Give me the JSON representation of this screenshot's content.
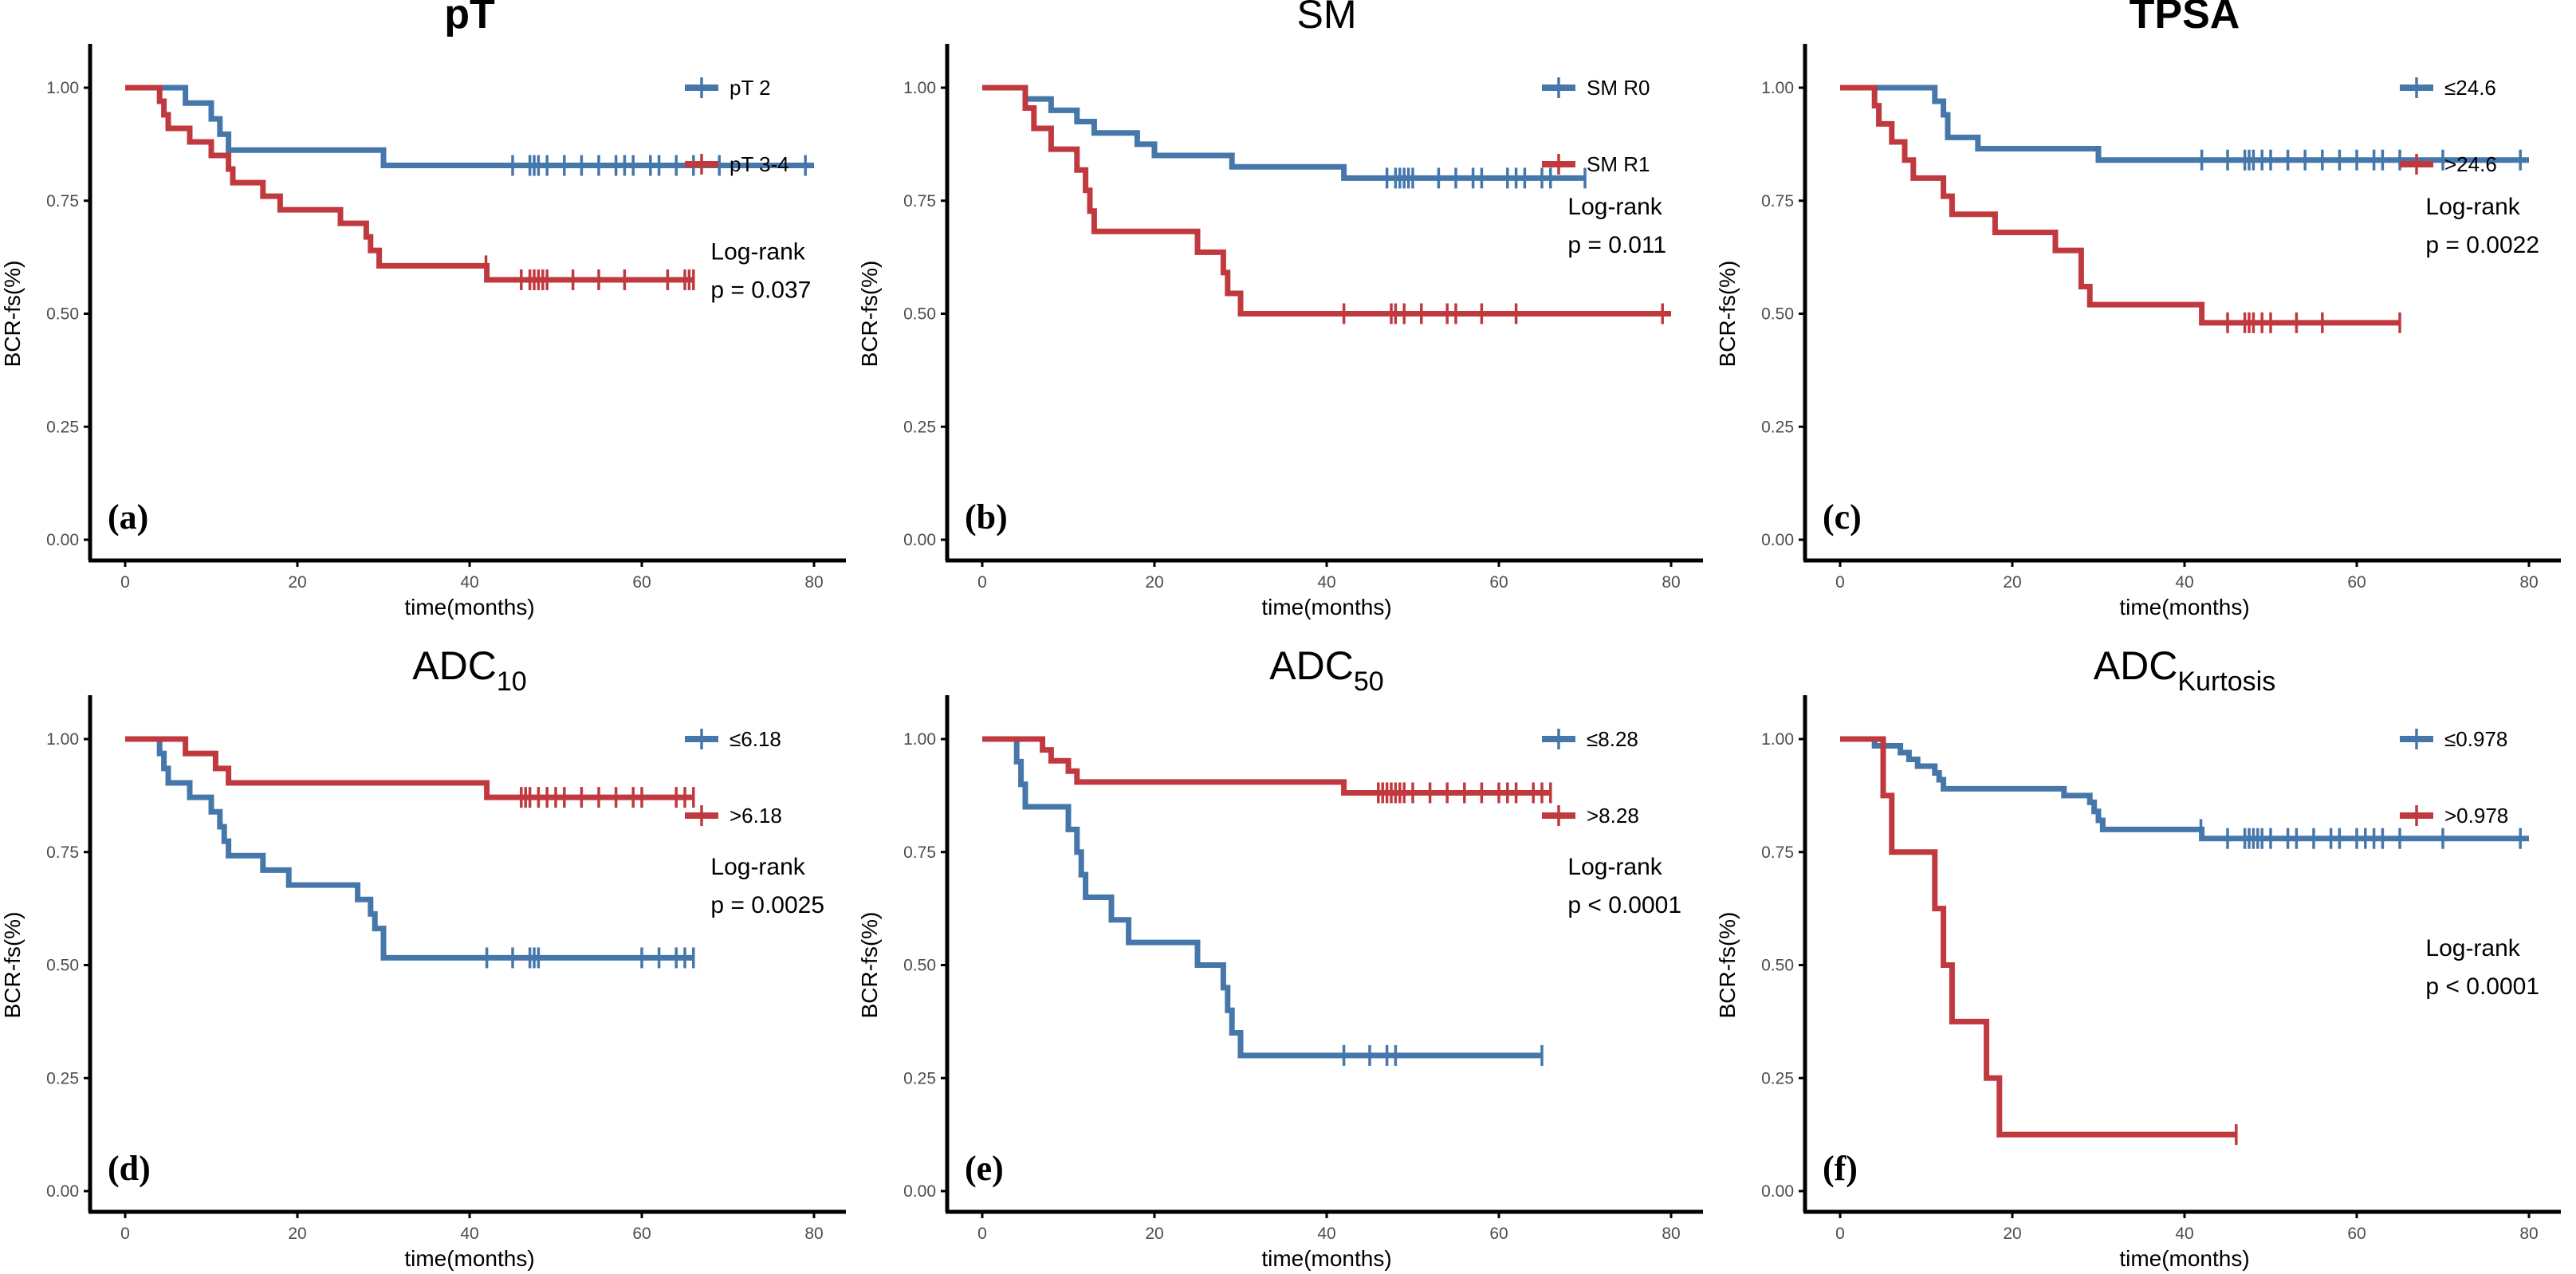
{
  "figure": {
    "colors": {
      "group1": "#4577AB",
      "group2": "#C0393F",
      "axis": "#000000",
      "tick_text": "#4d4d4d"
    }
  },
  "chart_data": [
    {
      "type": "line",
      "subtype": "kaplan-meier",
      "panel_tag": "(a)",
      "title": "pT",
      "title_sub": "",
      "title_bold": true,
      "xlabel": "time(months)",
      "ylabel": "BCR-fs(%)",
      "xlim": [
        0,
        80
      ],
      "ylim": [
        0,
        1
      ],
      "xticks": [
        "0",
        "20",
        "40",
        "60",
        "80"
      ],
      "yticks": [
        "0.00",
        "0.25",
        "0.50",
        "0.75",
        "1.00"
      ],
      "legend_position": "top-right",
      "annotation": [
        "Log-rank",
        "p = 0.037"
      ],
      "annotation_y": 0.62,
      "series": [
        {
          "name": "pT 2",
          "color": "#4577AB",
          "end": 80,
          "steps": [
            [
              0,
              1.0
            ],
            [
              7,
              0.966
            ],
            [
              10,
              0.931
            ],
            [
              11,
              0.897
            ],
            [
              12,
              0.862
            ],
            [
              30,
              0.828
            ]
          ],
          "censors": [
            45,
            47,
            47.5,
            48,
            49,
            51,
            53,
            55,
            57,
            58,
            59,
            61,
            62,
            64,
            66,
            69,
            79
          ]
        },
        {
          "name": "pT 3-4",
          "color": "#C0393F",
          "end": 66,
          "steps": [
            [
              0,
              1.0
            ],
            [
              4,
              0.97
            ],
            [
              4.5,
              0.94
            ],
            [
              5,
              0.91
            ],
            [
              7.5,
              0.88
            ],
            [
              10,
              0.85
            ],
            [
              12,
              0.82
            ],
            [
              12.5,
              0.79
            ],
            [
              16,
              0.76
            ],
            [
              18,
              0.73
            ],
            [
              25,
              0.7
            ],
            [
              28,
              0.67
            ],
            [
              28.5,
              0.64
            ],
            [
              29.5,
              0.606
            ],
            [
              42,
              0.575
            ]
          ],
          "censors": [
            41.9,
            46,
            47,
            47.5,
            48,
            48.5,
            49,
            52,
            55,
            58,
            63,
            65,
            65.5,
            66
          ]
        }
      ]
    },
    {
      "type": "line",
      "subtype": "kaplan-meier",
      "panel_tag": "(b)",
      "title": "SM",
      "title_sub": "",
      "title_bold": false,
      "xlabel": "time(months)",
      "ylabel": "BCR-fs(%)",
      "xlim": [
        0,
        80
      ],
      "ylim": [
        0,
        1
      ],
      "xticks": [
        "0",
        "20",
        "40",
        "60",
        "80"
      ],
      "yticks": [
        "0.00",
        "0.25",
        "0.50",
        "0.75",
        "1.00"
      ],
      "legend_position": "top-right",
      "annotation": [
        "Log-rank",
        "p = 0.011"
      ],
      "annotation_y": 0.72,
      "series": [
        {
          "name": "SM R0",
          "color": "#4577AB",
          "end": 70,
          "steps": [
            [
              0,
              1.0
            ],
            [
              5,
              0.975
            ],
            [
              8,
              0.95
            ],
            [
              11,
              0.925
            ],
            [
              13,
              0.9
            ],
            [
              18,
              0.875
            ],
            [
              20,
              0.85
            ],
            [
              29,
              0.825
            ],
            [
              42,
              0.8
            ]
          ],
          "censors": [
            47,
            48,
            48.5,
            49,
            49.5,
            50,
            53,
            55,
            57,
            58,
            61,
            62,
            63,
            65,
            66,
            70
          ]
        },
        {
          "name": "SM R1",
          "color": "#C0393F",
          "end": 80,
          "steps": [
            [
              0,
              1.0
            ],
            [
              5,
              0.955
            ],
            [
              6,
              0.91
            ],
            [
              8,
              0.864
            ],
            [
              11,
              0.818
            ],
            [
              12,
              0.773
            ],
            [
              12.5,
              0.727
            ],
            [
              13,
              0.682
            ],
            [
              25,
              0.636
            ],
            [
              28,
              0.591
            ],
            [
              28.5,
              0.545
            ],
            [
              30,
              0.5
            ]
          ],
          "censors": [
            42,
            47.5,
            48,
            49,
            51,
            54,
            55,
            58,
            62,
            79
          ]
        }
      ]
    },
    {
      "type": "line",
      "subtype": "kaplan-meier",
      "panel_tag": "(c)",
      "title": "TPSA",
      "title_sub": "",
      "title_bold": true,
      "xlabel": "time(months)",
      "ylabel": "BCR-fs(%)",
      "xlim": [
        0,
        80
      ],
      "ylim": [
        0,
        1
      ],
      "xticks": [
        "0",
        "20",
        "40",
        "60",
        "80"
      ],
      "yticks": [
        "0.00",
        "0.25",
        "0.50",
        "0.75",
        "1.00"
      ],
      "legend_position": "top-right",
      "annotation": [
        "Log-rank",
        "p = 0.0022"
      ],
      "annotation_y": 0.72,
      "series": [
        {
          "name": "≤24.6",
          "color": "#4577AB",
          "end": 80,
          "steps": [
            [
              0,
              1.0
            ],
            [
              11,
              0.97
            ],
            [
              12,
              0.94
            ],
            [
              12.5,
              0.89
            ],
            [
              16,
              0.865
            ],
            [
              30,
              0.84
            ]
          ],
          "censors": [
            42,
            45,
            47,
            47.5,
            48,
            49,
            50,
            52,
            54,
            56,
            58,
            60,
            62,
            63,
            65,
            70,
            79
          ]
        },
        {
          "name": ">24.6",
          "color": "#C0393F",
          "end": 65,
          "steps": [
            [
              0,
              1.0
            ],
            [
              4,
              0.96
            ],
            [
              4.5,
              0.92
            ],
            [
              6,
              0.88
            ],
            [
              7.5,
              0.84
            ],
            [
              8.5,
              0.8
            ],
            [
              12,
              0.76
            ],
            [
              13,
              0.72
            ],
            [
              18,
              0.68
            ],
            [
              25,
              0.64
            ],
            [
              28,
              0.56
            ],
            [
              29,
              0.52
            ],
            [
              42,
              0.48
            ]
          ],
          "censors": [
            45,
            47,
            47.5,
            48,
            49,
            50,
            53,
            56,
            65
          ]
        }
      ]
    },
    {
      "type": "line",
      "subtype": "kaplan-meier",
      "panel_tag": "(d)",
      "title": "ADC",
      "title_sub": "10",
      "title_bold": false,
      "xlabel": "time(months)",
      "ylabel": "BCR-fs(%)",
      "xlim": [
        0,
        80
      ],
      "ylim": [
        0,
        1
      ],
      "xticks": [
        "0",
        "20",
        "40",
        "60",
        "80"
      ],
      "yticks": [
        "0.00",
        "0.25",
        "0.50",
        "0.75",
        "1.00"
      ],
      "legend_position": "top-right",
      "annotation": [
        "Log-rank",
        "p = 0.0025"
      ],
      "annotation_y": 0.7,
      "series": [
        {
          "name": "≤6.18",
          "color": "#4577AB",
          "end": 66,
          "steps": [
            [
              0,
              1.0
            ],
            [
              4,
              0.968
            ],
            [
              4.5,
              0.935
            ],
            [
              5,
              0.903
            ],
            [
              7.5,
              0.871
            ],
            [
              10,
              0.839
            ],
            [
              11,
              0.806
            ],
            [
              11.5,
              0.774
            ],
            [
              12,
              0.742
            ],
            [
              16,
              0.71
            ],
            [
              19,
              0.677
            ],
            [
              27,
              0.645
            ],
            [
              28.5,
              0.613
            ],
            [
              29,
              0.581
            ],
            [
              30,
              0.516
            ]
          ],
          "censors": [
            42,
            45,
            47,
            47.5,
            48,
            60,
            62,
            64,
            65,
            66
          ]
        },
        {
          "name": ">6.18",
          "color": "#C0393F",
          "end": 66,
          "steps": [
            [
              0,
              1.0
            ],
            [
              7,
              0.968
            ],
            [
              10.5,
              0.935
            ],
            [
              12,
              0.903
            ],
            [
              42,
              0.871
            ]
          ],
          "censors": [
            46,
            46.5,
            47,
            48,
            49,
            50,
            51,
            53,
            55,
            57,
            59,
            60,
            64,
            65,
            66
          ]
        }
      ]
    },
    {
      "type": "line",
      "subtype": "kaplan-meier",
      "panel_tag": "(e)",
      "title": "ADC",
      "title_sub": "50",
      "title_bold": false,
      "xlabel": "time(months)",
      "ylabel": "BCR-fs(%)",
      "xlim": [
        0,
        80
      ],
      "ylim": [
        0,
        1
      ],
      "xticks": [
        "0",
        "20",
        "40",
        "60",
        "80"
      ],
      "yticks": [
        "0.00",
        "0.25",
        "0.50",
        "0.75",
        "1.00"
      ],
      "legend_position": "top-right",
      "annotation": [
        "Log-rank",
        "p < 0.0001"
      ],
      "annotation_y": 0.7,
      "series": [
        {
          "name": "≤8.28",
          "color": "#4577AB",
          "end": 65,
          "steps": [
            [
              0,
              1.0
            ],
            [
              4,
              0.95
            ],
            [
              4.5,
              0.9
            ],
            [
              5,
              0.85
            ],
            [
              10,
              0.8
            ],
            [
              11,
              0.75
            ],
            [
              11.5,
              0.7
            ],
            [
              12,
              0.65
            ],
            [
              15,
              0.6
            ],
            [
              17,
              0.55
            ],
            [
              25,
              0.5
            ],
            [
              28,
              0.45
            ],
            [
              28.5,
              0.4
            ],
            [
              29,
              0.35
            ],
            [
              30,
              0.3
            ]
          ],
          "censors": [
            42,
            45,
            47,
            48,
            65
          ]
        },
        {
          "name": ">8.28",
          "color": "#C0393F",
          "end": 66,
          "steps": [
            [
              0,
              1.0
            ],
            [
              7,
              0.976
            ],
            [
              8,
              0.952
            ],
            [
              10,
              0.929
            ],
            [
              11,
              0.905
            ],
            [
              42,
              0.881
            ]
          ],
          "censors": [
            46,
            46.5,
            47,
            47.5,
            48,
            48.5,
            49,
            50,
            52,
            54,
            56,
            58,
            60,
            61,
            62,
            64,
            65,
            66
          ]
        }
      ]
    },
    {
      "type": "line",
      "subtype": "kaplan-meier",
      "panel_tag": "(f)",
      "title": "ADC",
      "title_sub": "Kurtosis",
      "title_bold": false,
      "xlabel": "time(months)",
      "ylabel": "BCR-fs(%)",
      "xlim": [
        0,
        80
      ],
      "ylim": [
        0,
        1
      ],
      "xticks": [
        "0",
        "20",
        "40",
        "60",
        "80"
      ],
      "yticks": [
        "0.00",
        "0.25",
        "0.50",
        "0.75",
        "1.00"
      ],
      "legend_position": "top-right",
      "annotation": [
        "Log-rank",
        "p < 0.0001"
      ],
      "annotation_y": 0.52,
      "series": [
        {
          "name": "≤0.978",
          "color": "#4577AB",
          "end": 80,
          "steps": [
            [
              0,
              1.0
            ],
            [
              4,
              0.985
            ],
            [
              7,
              0.97
            ],
            [
              8,
              0.955
            ],
            [
              9,
              0.94
            ],
            [
              11,
              0.925
            ],
            [
              11.5,
              0.91
            ],
            [
              12,
              0.89
            ],
            [
              26,
              0.875
            ],
            [
              29,
              0.86
            ],
            [
              29.5,
              0.84
            ],
            [
              30,
              0.82
            ],
            [
              30.5,
              0.8
            ],
            [
              42,
              0.78
            ]
          ],
          "censors": [
            41.9,
            45,
            47,
            47.5,
            48,
            48.5,
            49,
            50,
            52,
            53,
            55,
            57,
            58,
            60,
            61,
            62,
            63,
            65,
            70,
            79
          ]
        },
        {
          "name": ">0.978",
          "color": "#C0393F",
          "end": 46,
          "steps": [
            [
              0,
              1.0
            ],
            [
              5,
              0.875
            ],
            [
              6,
              0.75
            ],
            [
              11,
              0.625
            ],
            [
              12,
              0.5
            ],
            [
              13,
              0.375
            ],
            [
              17,
              0.25
            ],
            [
              18.5,
              0.125
            ]
          ],
          "censors": [
            46
          ]
        }
      ]
    }
  ]
}
